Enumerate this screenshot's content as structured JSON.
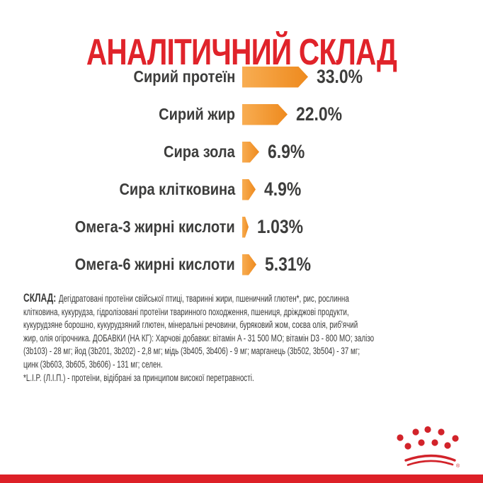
{
  "title": {
    "text": "АНАЛІТИЧНИЙ СКЛАД",
    "color": "#E0232A"
  },
  "chart_data": {
    "type": "bar",
    "orientation": "horizontal",
    "title": "АНАЛІТИЧНИЙ СКЛАД",
    "categories": [
      "Сирий протеїн",
      "Сирий жир",
      "Сира зола",
      "Сира клітковина",
      "Омега-3 жирні кислоти",
      "Омега-6 жирні кислоти"
    ],
    "values": [
      33.0,
      22.0,
      6.9,
      4.9,
      1.03,
      5.31
    ],
    "value_labels": [
      "33.0%",
      "22.0%",
      "6.9%",
      "4.9%",
      "1.03%",
      "5.31%"
    ],
    "unit": "%",
    "xlabel": "",
    "ylabel": "",
    "legend": "none",
    "grid": false,
    "bar_color_start": "#F8AD52",
    "bar_color_end": "#EE8A1E",
    "label_color": "#3D3D3C"
  },
  "composition": {
    "heading": "СКЛАД:",
    "lines": [
      "Дегідратовані протеїни свійської птиці, тваринні жири, пшеничний глютен*, рис, рослинна",
      "клітковина, кукурудза, гідролізовані протеїни тваринного походження, пшениця, дріжджові продукти,",
      "кукурудзяне борошно, кукурудзяний глютен, мінеральні речовини, буряковий жом, соєва олія, риб'ячий",
      "жир, олія огірочника. ДОБАВКИ (НА КГ): Харчові добавки: вітамін A - 31 500 МО; вітамін D3 - 800 МО; залізо",
      "(3b103) - 28 мг; йод (3b201, 3b202) - 2,8 мг; мідь (3b405, 3b406) - 9 мг; марганець (3b502, 3b504) - 37 мг;",
      "цинк (3b603, 3b605, 3b606) - 131 мг; селен.",
      "*L.I.P. (Л.І.П.) - протеїни, відібрані за принципом високої перетравності."
    ]
  },
  "logo": {
    "name": "royal-canin-crown",
    "color": "#D2232A",
    "registered_mark": "®"
  },
  "footer": {
    "bar_color": "#DD2027"
  }
}
